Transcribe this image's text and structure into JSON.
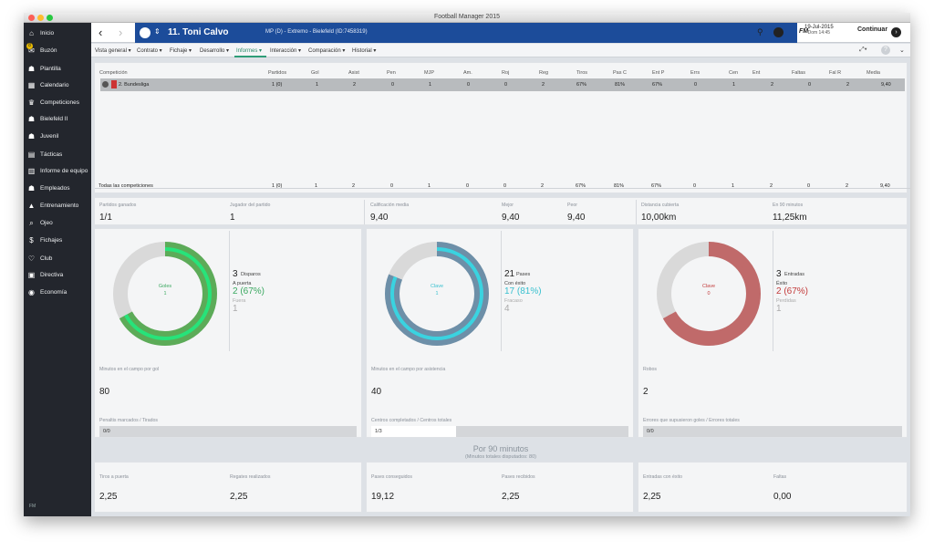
{
  "window": {
    "title": "Football Manager 2015"
  },
  "sidebar": {
    "items": [
      {
        "label": "Inicio",
        "icon": "home-icon"
      },
      {
        "label": "Buzón",
        "icon": "mail-icon"
      },
      {
        "label": "Plantilla",
        "icon": "squad-icon"
      },
      {
        "label": "Calendario",
        "icon": "calendar-icon"
      },
      {
        "label": "Competiciones",
        "icon": "trophy-icon"
      },
      {
        "label": "Bielefeld II",
        "icon": "team-icon"
      },
      {
        "label": "Juvenil",
        "icon": "youth-icon"
      },
      {
        "label": "Tácticas",
        "icon": "tactics-icon"
      },
      {
        "label": "Informe de equipo",
        "icon": "report-icon"
      },
      {
        "label": "Empleados",
        "icon": "staff-icon"
      },
      {
        "label": "Entrenamiento",
        "icon": "training-icon"
      },
      {
        "label": "Ojeo",
        "icon": "scout-icon"
      },
      {
        "label": "Fichajes",
        "icon": "transfer-icon"
      },
      {
        "label": "Club",
        "icon": "club-icon"
      },
      {
        "label": "Directiva",
        "icon": "board-icon"
      },
      {
        "label": "Economía",
        "icon": "finance-icon"
      }
    ],
    "inbox_badge": "8",
    "footer": "FM"
  },
  "header": {
    "player_number_name": "11. Toni Calvo",
    "player_sub": "MP (D) - Extremo - Bielefeld (ID:7458319)",
    "date": "19-Jul-2015",
    "date_sub": "Dom 14:45",
    "continue_label": "Continuar",
    "fm_label": "FM"
  },
  "tabs": [
    {
      "label": "Vista general"
    },
    {
      "label": "Contrato"
    },
    {
      "label": "Fichaje"
    },
    {
      "label": "Desarrollo"
    },
    {
      "label": "Informes"
    },
    {
      "label": "Interacción"
    },
    {
      "label": "Comparación"
    },
    {
      "label": "Historial"
    }
  ],
  "table": {
    "headers": [
      "Competición",
      "Partidos",
      "Gol",
      "Asist",
      "Pen",
      "MJP",
      "Am.",
      "Roj",
      "Reg",
      "Tiros",
      "Pas C",
      "Ent P",
      "Errs",
      "Cen",
      "Ent",
      "Faltas",
      "Fal R",
      "Media"
    ],
    "row": [
      "2. Bundesliga",
      "1 (0)",
      "1",
      "2",
      "0",
      "1",
      "0",
      "0",
      "2",
      "67%",
      "81%",
      "67%",
      "0",
      "1",
      "2",
      "0",
      "2",
      "9,40"
    ],
    "total": [
      "Todas las competiciones",
      "1 (0)",
      "1",
      "2",
      "0",
      "1",
      "0",
      "0",
      "2",
      "67%",
      "81%",
      "67%",
      "0",
      "1",
      "2",
      "0",
      "2",
      "9,40"
    ]
  },
  "summary": [
    {
      "label": "Partidos ganados",
      "value": "1/1"
    },
    {
      "label": "Jugador del partido",
      "value": "1"
    },
    {
      "label": "Calificación media",
      "value": "9,40"
    },
    {
      "label": "Mejor",
      "value": "9,40"
    },
    {
      "label": "Peor",
      "value": "9,40"
    },
    {
      "label": "Distancia cubierta",
      "value": "10,00km"
    },
    {
      "label": "En 90 minutos",
      "value": "11,25km"
    }
  ],
  "cards": [
    {
      "donut_title": "Goles",
      "donut_value": "1",
      "fraction": 0.67,
      "color": "#5cab58",
      "accent": "#27e37a",
      "text_color": "#3aa860",
      "total": "3",
      "total_label": "Disparos",
      "ok_label": "A puerta",
      "ok_value": "2 (67%)",
      "miss_label": "Fuera",
      "miss_value": "1",
      "mid_label": "Minutos en el campo por gol",
      "mid_value": "80",
      "bar_label": "Penaltis marcados / Tirados",
      "bar_text": "0/0",
      "bar_fraction": 0
    },
    {
      "donut_title": "Clave",
      "donut_value": "1",
      "fraction": 0.81,
      "color": "#6d8fa8",
      "accent": "#3ad3e0",
      "text_color": "#38c0cf",
      "total": "21",
      "total_label": "Pases",
      "ok_label": "Con éxito",
      "ok_value": "17 (81%)",
      "miss_label": "Fracaso",
      "miss_value": "4",
      "mid_label": "Minutos en el campo por asistencia",
      "mid_value": "40",
      "bar_label": "Centros completados / Centros totales",
      "bar_text": "1/3",
      "bar_fraction": 0.33
    },
    {
      "donut_title": "Clave",
      "donut_value": "0",
      "fraction": 0.67,
      "color": "#c06a6a",
      "accent": "#c06a6a",
      "text_color": "#c33c3c",
      "total": "3",
      "total_label": "Entradas",
      "ok_label": "Éxito",
      "ok_value": "2 (67%)",
      "miss_label": "Perdidas",
      "miss_value": "1",
      "mid_label": "Robos",
      "mid_value": "2",
      "bar_label": "Errores que supusieron goles / Errores totales",
      "bar_text": "0/0",
      "bar_fraction": 0
    }
  ],
  "per90": {
    "title": "Por 90 minutos",
    "subtitle": "(Minutos totales disputados: 80)",
    "stats": [
      {
        "label": "Tiros a puerta",
        "value": "2,25"
      },
      {
        "label": "Regates realizados",
        "value": "2,25"
      },
      {
        "label": "Pases conseguidos",
        "value": "19,12"
      },
      {
        "label": "Pases recibidos",
        "value": "2,25"
      },
      {
        "label": "Entradas con éxito",
        "value": "2,25"
      },
      {
        "label": "Faltas",
        "value": "0,00"
      }
    ]
  }
}
